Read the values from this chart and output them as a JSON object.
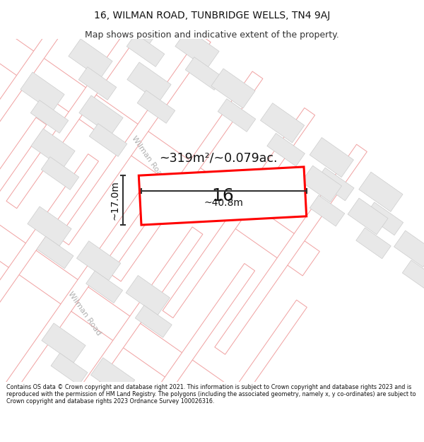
{
  "title": "16, WILMAN ROAD, TUNBRIDGE WELLS, TN4 9AJ",
  "subtitle": "Map shows position and indicative extent of the property.",
  "footer": "Contains OS data © Crown copyright and database right 2021. This information is subject to Crown copyright and database rights 2023 and is reproduced with the permission of HM Land Registry. The polygons (including the associated geometry, namely x, y co-ordinates) are subject to Crown copyright and database rights 2023 Ordnance Survey 100026316.",
  "area_label": "~319m²/~0.079ac.",
  "width_label": "~40.8m",
  "height_label": "~17.0m",
  "house_number": "16",
  "bg_color": "#ffffff",
  "map_bg": "#f5f5f5",
  "road_fill": "#ffffff",
  "road_line": "#f0a0a0",
  "road_label_color": "#b0b0b0",
  "building_fill": "#e8e8e8",
  "building_line": "#cccccc",
  "plot_line": "#e0c0c0",
  "highlight_fill": "#ffffff",
  "highlight_line": "#ff0000",
  "highlight_lw": 2.2,
  "dim_line": "#333333",
  "title_fontsize": 10,
  "subtitle_fontsize": 9,
  "footer_fontsize": 5.8,
  "road_ang": -35
}
